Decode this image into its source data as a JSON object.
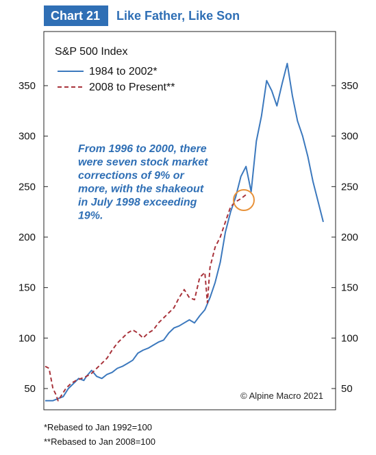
{
  "header": {
    "label": "Chart 21",
    "title": "Like Father, Like Son"
  },
  "colors": {
    "accent": "#2f6fb5",
    "series_1984": "#3b78bd",
    "series_2008": "#a8323a",
    "highlight_circle": "#e8923a"
  },
  "chart_data": {
    "type": "line",
    "title": "S&P 500 Index",
    "xlabel": "",
    "ylabel": "",
    "ylim": [
      32,
      385
    ],
    "y_ticks": [
      50,
      100,
      150,
      200,
      250,
      300,
      350
    ],
    "y_tick_labels": [
      "50",
      "100",
      "150",
      "200",
      "250",
      "300",
      "350"
    ],
    "grid": false,
    "legend_position": "top-left",
    "x_axis": "months since start of each period (no labels shown)",
    "series": [
      {
        "name": "1984 to 2002*",
        "style": "solid",
        "x": [
          0,
          6,
          10,
          14,
          18,
          22,
          26,
          30,
          32,
          36,
          40,
          44,
          48,
          52,
          56,
          60,
          64,
          68,
          72,
          76,
          80,
          84,
          88,
          92,
          96,
          100,
          104,
          108,
          112,
          116,
          120,
          124,
          128,
          132,
          136,
          140,
          144,
          148,
          152,
          156,
          160,
          164,
          168,
          172,
          176,
          180,
          184,
          188,
          192,
          196,
          200,
          204,
          208,
          212,
          216
        ],
        "values": [
          38,
          38,
          40,
          42,
          50,
          55,
          60,
          58,
          62,
          68,
          62,
          60,
          64,
          66,
          70,
          72,
          75,
          78,
          85,
          88,
          90,
          93,
          96,
          98,
          105,
          110,
          112,
          115,
          118,
          115,
          122,
          128,
          140,
          155,
          175,
          205,
          225,
          240,
          260,
          270,
          245,
          295,
          320,
          355,
          345,
          330,
          352,
          372,
          340,
          315,
          300,
          280,
          255,
          235,
          215
        ]
      },
      {
        "name": "2008 to Present**",
        "style": "dashed",
        "x": [
          0,
          3,
          6,
          8,
          10,
          12,
          16,
          20,
          24,
          28,
          32,
          36,
          40,
          44,
          48,
          52,
          56,
          60,
          64,
          68,
          72,
          76,
          80,
          84,
          88,
          92,
          96,
          100,
          104,
          108,
          112,
          116,
          120,
          124,
          126,
          128,
          132,
          136,
          140,
          144,
          148,
          152,
          156
        ],
        "values": [
          72,
          70,
          50,
          45,
          38,
          42,
          50,
          55,
          58,
          60,
          62,
          65,
          70,
          75,
          80,
          88,
          95,
          100,
          105,
          108,
          105,
          100,
          105,
          108,
          115,
          120,
          125,
          130,
          140,
          148,
          140,
          138,
          160,
          165,
          135,
          170,
          190,
          200,
          215,
          230,
          235,
          238,
          242
        ]
      }
    ],
    "annotation": "From 1996 to 2000, there were seven stock market corrections of 9% or more, with the shakeout in July 1998 exceeding 19%.",
    "source": "© Alpine Macro 2021"
  },
  "footnotes": [
    "*Rebased to Jan 1992=100",
    "**Rebased to Jan 2008=100"
  ]
}
